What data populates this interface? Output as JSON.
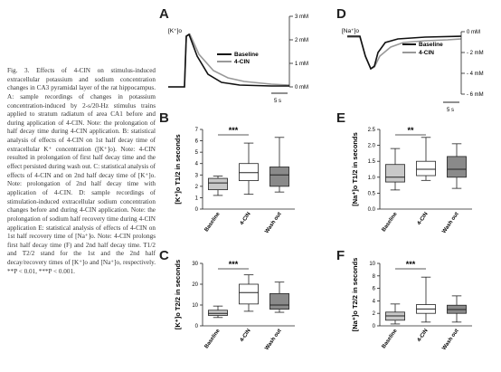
{
  "caption": "Fig. 3. Effects of 4-CIN on stimulus-induced extracellular potassium and sodium concentration changes in CA3 pyramidal layer of the rat hippocampus. A: sample recordings of changes in potassium concentration-induced by 2-s/20-Hz stimulus trains applied to stratum radiatum of area CA1 before and during application of 4-CIN. Note: the prolongation of half decay time during 4-CIN application. B: statistical analysis of effects of 4-CIN on 1st half decay time of extracellular K⁺ concentration ([K⁺]o). Note: 4-CIN resulted in prolongation of first half decay time and the effect persisted during wash out. C: statistical analysis of effects of 4-CIN and on 2nd half decay time of [K⁺]o. Note: prolongation of 2nd half decay time with application of 4-CIN. D: sample recordings of stimulation-induced extracellular sodium concentration changes before and during 4-CIN application. Note: the prolongation of sodium half recovery time during 4-CIN application E: statistical analysis of effects of 4-CIN on 1st half recovery time of [Na⁺]o. Note: 4-CIN prolongs first half decay time (F) and 2nd half decay time. T1/2 and T2/2 stand for the 1st and the 2nd half decay/recovery times of [K⁺]o and [Na⁺]o, respectively. **P < 0.01, ***P < 0.001.",
  "panels": {
    "A": {
      "letter": "A",
      "ion_label": "[K⁺]o",
      "legend": [
        "Baseline",
        "4-CIN"
      ],
      "scale_labels": [
        "3 mM",
        "2 mM",
        "1 mM",
        "0 mM"
      ],
      "time_label": "5 s"
    },
    "D": {
      "letter": "D",
      "ion_label": "[Na⁺]o",
      "legend": [
        "Baseline",
        "4-CIN"
      ],
      "scale_labels": [
        "0 mM",
        "- 2 mM",
        "- 4 mM",
        "- 6 mM"
      ],
      "time_label": "5 s"
    }
  },
  "colors": {
    "baseline_trace": "#111111",
    "cin_trace": "#999999",
    "washout_box": "#8a8a8a",
    "baseline_box": "#c8c8c8",
    "cin_box": "#ffffff"
  },
  "chart_data": [
    {
      "panel": "B",
      "type": "box",
      "ylabel": "[K⁺]o T1/2 in seconds",
      "ylim": [
        0,
        7
      ],
      "yticks": [
        0,
        1,
        2,
        3,
        4,
        5,
        6,
        7
      ],
      "categories": [
        "Baseline",
        "4-CIN",
        "Wash out"
      ],
      "significance": "***",
      "boxes": [
        {
          "min": 1.2,
          "q1": 1.7,
          "median": 2.3,
          "q3": 2.7,
          "max": 2.9
        },
        {
          "min": 1.3,
          "q1": 2.5,
          "median": 3.2,
          "q3": 4.0,
          "max": 5.8
        },
        {
          "min": 1.5,
          "q1": 2.0,
          "median": 3.0,
          "q3": 3.7,
          "max": 6.3
        }
      ]
    },
    {
      "panel": "C",
      "type": "box",
      "ylabel": "[K⁺]o T2/2 in seconds",
      "ylim": [
        0,
        30
      ],
      "yticks": [
        0,
        10,
        20,
        30
      ],
      "categories": [
        "Baseline",
        "4-CIN",
        "Wash out"
      ],
      "significance": "***",
      "boxes": [
        {
          "min": 4,
          "q1": 5,
          "median": 6,
          "q3": 7.5,
          "max": 9.5
        },
        {
          "min": 7,
          "q1": 10.5,
          "median": 16,
          "q3": 20,
          "max": 24.5
        },
        {
          "min": 6.5,
          "q1": 8,
          "median": 10,
          "q3": 15.5,
          "max": 21
        }
      ]
    },
    {
      "panel": "E",
      "type": "box",
      "ylabel": "[Na⁺]o T1/2 in seconds",
      "ylim": [
        0,
        2.5
      ],
      "yticks": [
        0,
        0.5,
        1.0,
        1.5,
        2.0,
        2.5
      ],
      "categories": [
        "Baseline",
        "4-CIN",
        "Wash out"
      ],
      "significance": "**",
      "boxes": [
        {
          "min": 0.6,
          "q1": 0.85,
          "median": 1.0,
          "q3": 1.4,
          "max": 1.9
        },
        {
          "min": 0.9,
          "q1": 1.05,
          "median": 1.25,
          "q3": 1.5,
          "max": 2.25
        },
        {
          "min": 0.65,
          "q1": 1.0,
          "median": 1.25,
          "q3": 1.65,
          "max": 2.05
        }
      ]
    },
    {
      "panel": "F",
      "type": "box",
      "ylabel": "[Na⁺]o T2/2 in seconds",
      "ylim": [
        0,
        10
      ],
      "yticks": [
        0,
        2,
        4,
        6,
        8,
        10
      ],
      "categories": [
        "Baseline",
        "4-CIN",
        "Wash out"
      ],
      "significance": "***",
      "boxes": [
        {
          "min": 0.3,
          "q1": 0.9,
          "median": 1.6,
          "q3": 2.2,
          "max": 3.5
        },
        {
          "min": 0.6,
          "q1": 2.0,
          "median": 2.7,
          "q3": 3.4,
          "max": 7.8
        },
        {
          "min": 0.6,
          "q1": 2.0,
          "median": 2.6,
          "q3": 3.3,
          "max": 4.8
        }
      ]
    }
  ]
}
